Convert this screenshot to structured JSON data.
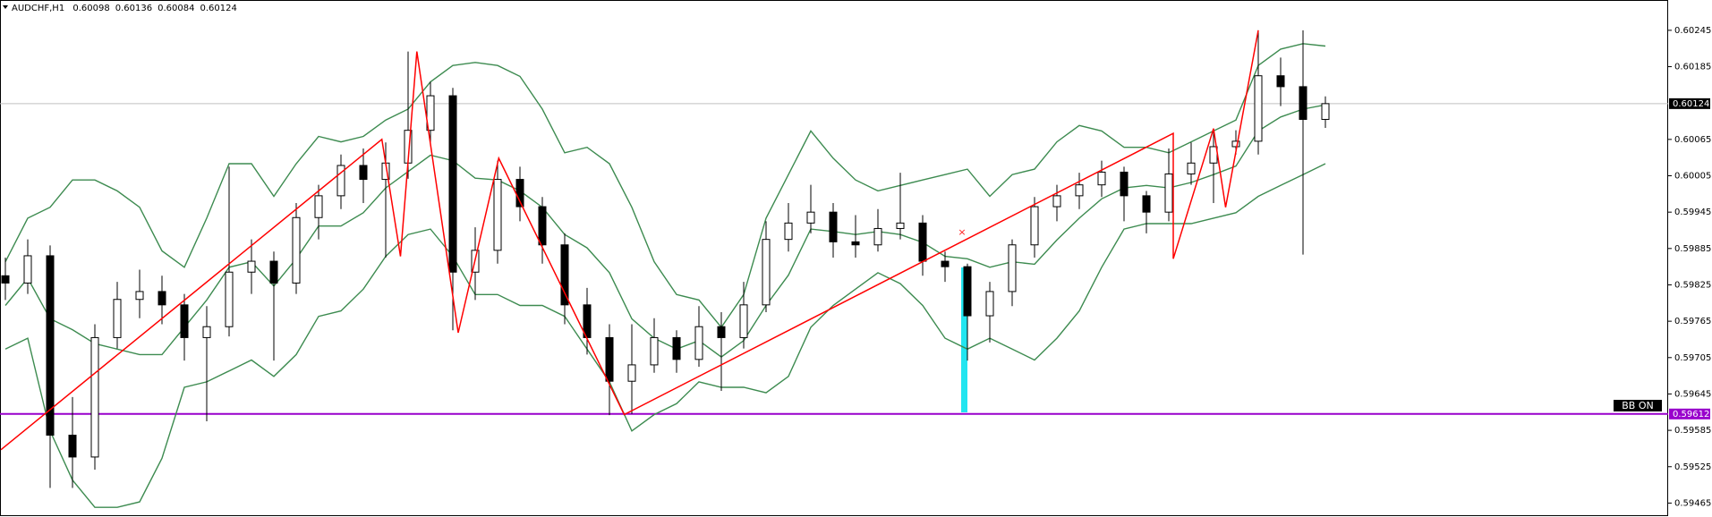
{
  "chart_data": {
    "type": "candlestick",
    "title": "AUDCHF,H1",
    "header_ohlc": [
      0.60098,
      0.60136,
      0.60084,
      0.60124
    ],
    "up_color": "#ffffff",
    "down_color": "#000000",
    "ohlc": [
      [
        0.5984,
        0.5987,
        0.598,
        0.59828
      ],
      [
        0.59828,
        0.599,
        0.5981,
        0.59873
      ],
      [
        0.59873,
        0.5989,
        0.5949,
        0.59577
      ],
      [
        0.59577,
        0.5964,
        0.5949,
        0.59541
      ],
      [
        0.59541,
        0.5976,
        0.5952,
        0.59738
      ],
      [
        0.59738,
        0.5983,
        0.5972,
        0.59801
      ],
      [
        0.59801,
        0.5985,
        0.5977,
        0.59814
      ],
      [
        0.59814,
        0.5984,
        0.5976,
        0.59792
      ],
      [
        0.59792,
        0.5981,
        0.597,
        0.59738
      ],
      [
        0.59738,
        0.5979,
        0.596,
        0.59756
      ],
      [
        0.59756,
        0.6002,
        0.5974,
        0.59846
      ],
      [
        0.59846,
        0.599,
        0.5981,
        0.59864
      ],
      [
        0.59864,
        0.5988,
        0.597,
        0.59828
      ],
      [
        0.59828,
        0.5996,
        0.5981,
        0.59936
      ],
      [
        0.59936,
        0.5999,
        0.599,
        0.59972
      ],
      [
        0.59972,
        0.6004,
        0.5995,
        0.60022
      ],
      [
        0.60022,
        0.6005,
        0.5996,
        0.59999
      ],
      [
        0.59999,
        0.6006,
        0.5987,
        0.60026
      ],
      [
        0.60026,
        0.6021,
        0.6,
        0.6008
      ],
      [
        0.6008,
        0.6016,
        0.6006,
        0.60137
      ],
      [
        0.60137,
        0.6015,
        0.5975,
        0.59846
      ],
      [
        0.59846,
        0.5992,
        0.598,
        0.59882
      ],
      [
        0.59882,
        0.6003,
        0.5986,
        0.59999
      ],
      [
        0.59999,
        0.6002,
        0.5993,
        0.59954
      ],
      [
        0.59954,
        0.5997,
        0.5986,
        0.59891
      ],
      [
        0.59891,
        0.5991,
        0.5976,
        0.59792
      ],
      [
        0.59792,
        0.5982,
        0.5971,
        0.59738
      ],
      [
        0.59738,
        0.5976,
        0.5961,
        0.59666
      ],
      [
        0.59666,
        0.5976,
        0.59612,
        0.59693
      ],
      [
        0.59693,
        0.5977,
        0.5968,
        0.59738
      ],
      [
        0.59738,
        0.5975,
        0.5968,
        0.59702
      ],
      [
        0.59702,
        0.5979,
        0.5969,
        0.59756
      ],
      [
        0.59756,
        0.5978,
        0.5965,
        0.59738
      ],
      [
        0.59738,
        0.5983,
        0.5972,
        0.59792
      ],
      [
        0.59792,
        0.5993,
        0.5978,
        0.599
      ],
      [
        0.599,
        0.5996,
        0.5988,
        0.59927
      ],
      [
        0.59927,
        0.5999,
        0.5991,
        0.59945
      ],
      [
        0.59945,
        0.5996,
        0.5987,
        0.59896
      ],
      [
        0.59896,
        0.5994,
        0.5987,
        0.59891
      ],
      [
        0.59891,
        0.5995,
        0.5988,
        0.59918
      ],
      [
        0.59918,
        0.6001,
        0.599,
        0.59927
      ],
      [
        0.59927,
        0.5994,
        0.5984,
        0.59864
      ],
      [
        0.59864,
        0.5988,
        0.5983,
        0.59855
      ],
      [
        0.59855,
        0.5986,
        0.597,
        0.59774
      ],
      [
        0.59774,
        0.5983,
        0.5973,
        0.59814
      ],
      [
        0.59814,
        0.599,
        0.5979,
        0.59891
      ],
      [
        0.59891,
        0.5997,
        0.5987,
        0.59954
      ],
      [
        0.59954,
        0.5999,
        0.5993,
        0.59972
      ],
      [
        0.59972,
        0.6001,
        0.5995,
        0.5999
      ],
      [
        0.5999,
        0.6003,
        0.5997,
        0.60011
      ],
      [
        0.60011,
        0.6002,
        0.5993,
        0.59972
      ],
      [
        0.59972,
        0.5998,
        0.5991,
        0.59945
      ],
      [
        0.59945,
        0.6005,
        0.5993,
        0.60008
      ],
      [
        0.60008,
        0.6006,
        0.5999,
        0.60026
      ],
      [
        0.60026,
        0.6008,
        0.5996,
        0.60053
      ],
      [
        0.60053,
        0.6008,
        0.6004,
        0.60062
      ],
      [
        0.60062,
        0.60245,
        0.6004,
        0.6017
      ],
      [
        0.6017,
        0.602,
        0.6012,
        0.60152
      ],
      [
        0.60152,
        0.60245,
        0.59875,
        0.60098
      ],
      [
        0.60098,
        0.60136,
        0.60084,
        0.60124
      ]
    ],
    "bands": {
      "color": "#3d8b50",
      "upper": [
        0.59863,
        0.59935,
        0.59953,
        0.59998,
        0.59998,
        0.5998,
        0.59953,
        0.59881,
        0.59854,
        0.59935,
        0.60025,
        0.60025,
        0.59971,
        0.60025,
        0.6007,
        0.60061,
        0.6007,
        0.60097,
        0.60115,
        0.6016,
        0.60187,
        0.60192,
        0.60187,
        0.60169,
        0.60115,
        0.60043,
        0.60052,
        0.60025,
        0.59953,
        0.59863,
        0.59809,
        0.598,
        0.59755,
        0.59809,
        0.59935,
        0.60007,
        0.60079,
        0.60034,
        0.59998,
        0.5998,
        0.59989,
        0.59998,
        0.60007,
        0.60016,
        0.59971,
        0.60007,
        0.60016,
        0.60061,
        0.60088,
        0.60079,
        0.60052,
        0.60052,
        0.60043,
        0.60061,
        0.60079,
        0.60097,
        0.60187,
        0.60214,
        0.60223,
        0.60219
      ],
      "middle": [
        0.59791,
        0.59836,
        0.59769,
        0.59751,
        0.59728,
        0.59719,
        0.5971,
        0.5971,
        0.59755,
        0.598,
        0.59854,
        0.59863,
        0.59823,
        0.59868,
        0.59922,
        0.59922,
        0.59944,
        0.59985,
        0.60012,
        0.60039,
        0.6003,
        0.60001,
        0.59998,
        0.5998,
        0.59953,
        0.59908,
        0.59886,
        0.59845,
        0.59769,
        0.59737,
        0.59719,
        0.59733,
        0.59706,
        0.59733,
        0.59791,
        0.59841,
        0.59917,
        0.59913,
        0.59908,
        0.59913,
        0.59908,
        0.59895,
        0.59872,
        0.59868,
        0.59854,
        0.59863,
        0.59859,
        0.59899,
        0.59935,
        0.59967,
        0.59985,
        0.59989,
        0.59985,
        0.59994,
        0.60007,
        0.60021,
        0.60079,
        0.60102,
        0.60115,
        0.60122
      ],
      "lower": [
        0.59719,
        0.59737,
        0.59584,
        0.59503,
        0.59458,
        0.59458,
        0.59467,
        0.59539,
        0.59656,
        0.59665,
        0.59683,
        0.59701,
        0.59674,
        0.5971,
        0.59773,
        0.59782,
        0.59818,
        0.59872,
        0.59908,
        0.59917,
        0.59872,
        0.59809,
        0.59809,
        0.59791,
        0.59791,
        0.59773,
        0.59719,
        0.59665,
        0.59584,
        0.59611,
        0.59629,
        0.59665,
        0.59656,
        0.59656,
        0.59647,
        0.59674,
        0.59755,
        0.59791,
        0.59818,
        0.59845,
        0.59827,
        0.59791,
        0.59737,
        0.59719,
        0.59737,
        0.59719,
        0.59701,
        0.59737,
        0.59782,
        0.59854,
        0.59917,
        0.59926,
        0.59926,
        0.59926,
        0.59935,
        0.59944,
        0.59971,
        0.59989,
        0.60007,
        0.60025
      ]
    },
    "zigzag": {
      "color": "#ff0000",
      "x": [
        -0.2,
        16.83,
        17.66,
        18.39,
        20.24,
        22.05,
        27.66,
        52.2,
        52.2,
        54.0,
        54.54,
        56.0
      ],
      "values": [
        0.59553,
        0.60065,
        0.59872,
        0.6021,
        0.59746,
        0.60034,
        0.59611,
        0.60075,
        0.59868,
        0.60083,
        0.59953,
        0.60245
      ]
    },
    "current_price": 0.60124,
    "level": {
      "value": 0.59612,
      "color": "#9900cc"
    },
    "indicator_label": "BB ON",
    "ylim": [
      0.59442,
      0.60295
    ],
    "yticks": [
      0.60245,
      0.60185,
      0.60065,
      0.60005,
      0.59945,
      0.59885,
      0.59825,
      0.59765,
      0.59705,
      0.59645,
      0.59585,
      0.59525,
      0.59465
    ]
  }
}
